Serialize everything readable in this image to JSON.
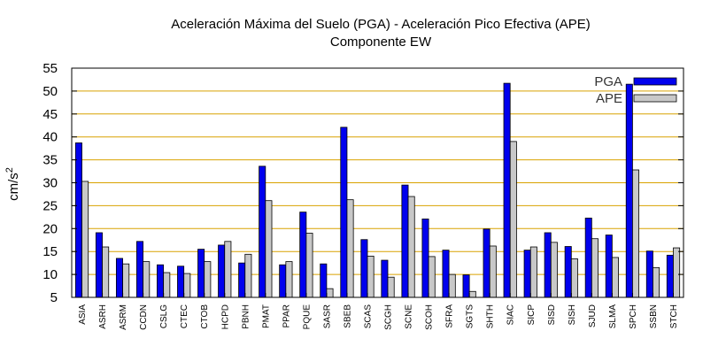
{
  "chart_data": {
    "type": "bar",
    "title": "Aceleración Máxima del Suelo (PGA) -  Aceleración Pico Efectiva (APE)",
    "subtitle": "Componente EW",
    "ylabel": "cm/s",
    "ylabel_sup": "2",
    "xlabel": "",
    "ylim": [
      5,
      55
    ],
    "yticks": [
      5,
      10,
      15,
      20,
      25,
      30,
      35,
      40,
      45,
      50,
      55
    ],
    "grid": "horizontal",
    "legend_position": "top-right",
    "categories": [
      "ASIA",
      "ASRH",
      "ASRM",
      "CCDN",
      "CSLG",
      "CTEC",
      "CTOB",
      "HCPD",
      "PBNH",
      "PMAT",
      "PPAR",
      "PQUE",
      "SASR",
      "SBEB",
      "SCAS",
      "SCGH",
      "SCNE",
      "SCOH",
      "SFRA",
      "SGTS",
      "SHTH",
      "SIAC",
      "SICP",
      "SISD",
      "SISH",
      "SJUD",
      "SLMA",
      "SPCH",
      "SSBN",
      "STCH"
    ],
    "series": [
      {
        "name": "PGA",
        "color": "#0000ee",
        "values": [
          38.7,
          19.1,
          13.5,
          17.2,
          12.1,
          11.8,
          15.5,
          16.4,
          12.5,
          33.6,
          12.1,
          23.6,
          12.3,
          42.1,
          17.6,
          13.1,
          29.5,
          22.1,
          15.3,
          9.9,
          19.9,
          51.7,
          15.3,
          19.1,
          16.1,
          22.3,
          18.6,
          51.5,
          15.1,
          14.2
        ]
      },
      {
        "name": "APE",
        "color": "#c8c8c8",
        "values": [
          30.3,
          16.0,
          12.3,
          12.8,
          10.4,
          10.2,
          12.8,
          17.2,
          14.4,
          26.1,
          12.8,
          19.0,
          6.9,
          26.3,
          14.0,
          9.4,
          27.0,
          13.9,
          10.0,
          6.3,
          16.2,
          39.0,
          16.0,
          17.0,
          13.4,
          17.8,
          13.7,
          32.8,
          11.5,
          15.8
        ]
      }
    ]
  }
}
